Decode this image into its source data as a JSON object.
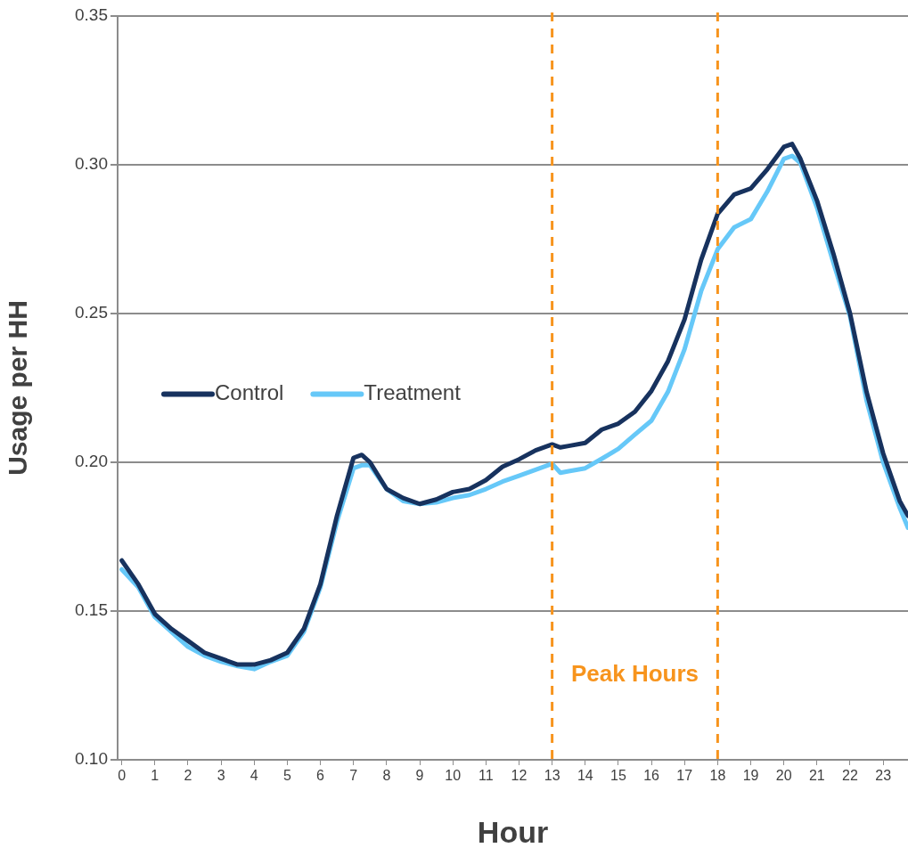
{
  "chart_data": {
    "type": "line",
    "xlabel": "Hour",
    "ylabel": "Usage per HH",
    "x": [
      0,
      0.5,
      1,
      1.5,
      2,
      2.5,
      3,
      3.5,
      4,
      4.5,
      5,
      5.5,
      6,
      6.5,
      7,
      7.25,
      7.5,
      8,
      8.5,
      9,
      9.5,
      10,
      10.5,
      11,
      11.5,
      12,
      12.5,
      13,
      13.25,
      13.5,
      14,
      14.5,
      15,
      15.5,
      16,
      16.5,
      17,
      17.5,
      18,
      18.5,
      19,
      19.5,
      20,
      20.25,
      20.5,
      21,
      21.5,
      22,
      22.5,
      23,
      23.5,
      23.75
    ],
    "series": [
      {
        "name": "Control",
        "color": "#17325e",
        "values": [
          0.167,
          0.159,
          0.149,
          0.144,
          0.14,
          0.136,
          0.134,
          0.132,
          0.132,
          0.1335,
          0.136,
          0.144,
          0.159,
          0.182,
          0.2015,
          0.2025,
          0.2,
          0.191,
          0.188,
          0.186,
          0.1875,
          0.19,
          0.191,
          0.194,
          0.1985,
          0.201,
          0.204,
          0.206,
          0.205,
          0.2055,
          0.2065,
          0.211,
          0.213,
          0.217,
          0.224,
          0.234,
          0.248,
          0.268,
          0.2835,
          0.29,
          0.292,
          0.2985,
          0.306,
          0.307,
          0.302,
          0.288,
          0.27,
          0.25,
          0.2236,
          0.203,
          0.187,
          0.182
        ]
      },
      {
        "name": "Treatment",
        "color": "#66c8f8",
        "values": [
          0.164,
          0.158,
          0.148,
          0.143,
          0.138,
          0.135,
          0.133,
          0.1315,
          0.1305,
          0.133,
          0.135,
          0.143,
          0.158,
          0.18,
          0.198,
          0.199,
          0.199,
          0.191,
          0.187,
          0.186,
          0.1865,
          0.188,
          0.189,
          0.191,
          0.1935,
          0.1955,
          0.1975,
          0.1995,
          0.1965,
          0.197,
          0.198,
          0.2012,
          0.2045,
          0.2093,
          0.214,
          0.2237,
          0.238,
          0.2575,
          0.2716,
          0.279,
          0.2817,
          0.291,
          0.302,
          0.303,
          0.3006,
          0.2856,
          0.267,
          0.249,
          0.2207,
          0.2,
          0.1847,
          0.178
        ]
      }
    ],
    "xlim": [
      -0.125,
      23.75
    ],
    "xticks": [
      0,
      1,
      2,
      3,
      4,
      5,
      6,
      7,
      8,
      9,
      10,
      11,
      12,
      13,
      14,
      15,
      16,
      17,
      18,
      19,
      20,
      21,
      22,
      23
    ],
    "ylim": [
      0.1,
      0.35
    ],
    "yticks": [
      {
        "value": 0.1,
        "label": "0.10"
      },
      {
        "value": 0.15,
        "label": "0.15"
      },
      {
        "value": 0.2,
        "label": "0.20"
      },
      {
        "value": 0.25,
        "label": "0.25"
      },
      {
        "value": 0.3,
        "label": "0.30"
      },
      {
        "value": 0.35,
        "label": "0.35"
      }
    ],
    "grid": "y",
    "legend": "left",
    "marker": "none",
    "line_style": "solid",
    "ref_lines": [
      {
        "axis": "x",
        "value": 13,
        "color": "#f7941d",
        "line_style": "dashed"
      },
      {
        "axis": "x",
        "value": 18,
        "color": "#f7941d",
        "line_style": "dashed"
      }
    ],
    "annotations": [
      "Peak Hours"
    ]
  }
}
